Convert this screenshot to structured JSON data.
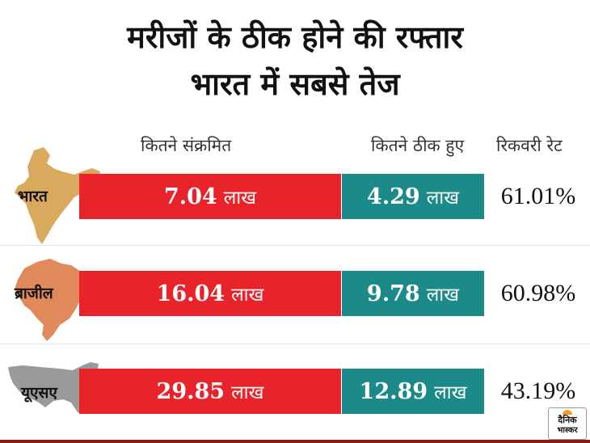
{
  "title_line1": "मरीजों के ठीक होने की रफ्तार",
  "title_line2": "भारत में सबसे तेज",
  "headers": {
    "infected": "कितने संक्रमित",
    "recovered": "कितने ठीक हुए",
    "rate": "रिकवरी रेट"
  },
  "unit_label": "लाख",
  "colors": {
    "infected": "#e8232a",
    "recovered": "#1b8a88",
    "map_india": "#d9a95e",
    "map_brazil": "#e0895a",
    "map_usa": "#9a9a9a"
  },
  "rows": [
    {
      "country": "भारत",
      "infected": "7.04",
      "recovered": "4.29",
      "rate": "61.01%",
      "map_icon": "india-map-icon"
    },
    {
      "country": "ब्राजील",
      "infected": "16.04",
      "recovered": "9.78",
      "rate": "60.98%",
      "map_icon": "brazil-map-icon"
    },
    {
      "country": "यूएसए",
      "infected": "29.85",
      "recovered": "12.89",
      "rate": "43.19%",
      "map_icon": "usa-map-icon"
    }
  ],
  "logo": {
    "line1": "दैनिक",
    "line2": "भास्कर"
  },
  "chart_data": {
    "type": "table",
    "title": "मरीजों के ठीक होने की रफ्तार भारत में सबसे तेज",
    "columns": [
      "कितने संक्रमित",
      "कितने ठीक हुए",
      "रिकवरी रेट"
    ],
    "categories": [
      "भारत",
      "ब्राजील",
      "यूएसए"
    ],
    "series": [
      {
        "name": "कितने संक्रमित",
        "values": [
          7.04,
          16.04,
          29.85
        ],
        "unit": "लाख"
      },
      {
        "name": "कितने ठीक हुए",
        "values": [
          4.29,
          9.78,
          12.89
        ],
        "unit": "लाख"
      },
      {
        "name": "रिकवरी रेट",
        "values": [
          61.01,
          60.98,
          43.19
        ],
        "unit": "%"
      }
    ]
  }
}
